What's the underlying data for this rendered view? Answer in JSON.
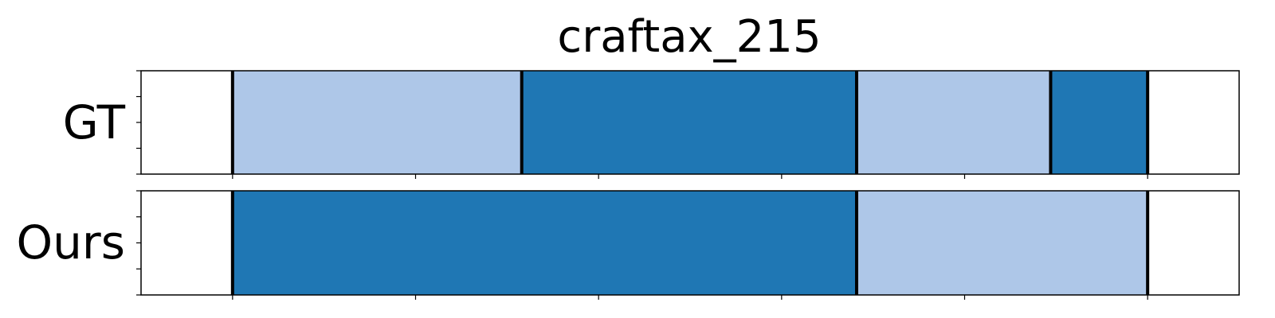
{
  "chart_data": {
    "type": "segmentation-timeline",
    "title": "craftax_215",
    "x_range": [
      -0.5,
      5.5
    ],
    "x_ticks": [
      0,
      1,
      2,
      3,
      4,
      5
    ],
    "y_ticks_per_row": 5,
    "rows": [
      {
        "label": "GT",
        "segments": [
          {
            "start": 0.0,
            "end": 1.58,
            "class": "light"
          },
          {
            "start": 1.58,
            "end": 3.41,
            "class": "dark"
          },
          {
            "start": 3.41,
            "end": 4.47,
            "class": "light"
          },
          {
            "start": 4.47,
            "end": 5.0,
            "class": "dark"
          }
        ],
        "boundaries": [
          0.0,
          1.58,
          3.41,
          4.47,
          5.0
        ]
      },
      {
        "label": "Ours",
        "segments": [
          {
            "start": 0.0,
            "end": 3.41,
            "class": "dark"
          },
          {
            "start": 3.41,
            "end": 5.0,
            "class": "light"
          }
        ],
        "boundaries": [
          0.0,
          3.41,
          5.0
        ]
      }
    ],
    "colors": {
      "light": "#aec7e8",
      "dark": "#1f77b4",
      "boundary": "#000000",
      "frame": "#000000"
    },
    "grid": false,
    "legend": "none"
  }
}
